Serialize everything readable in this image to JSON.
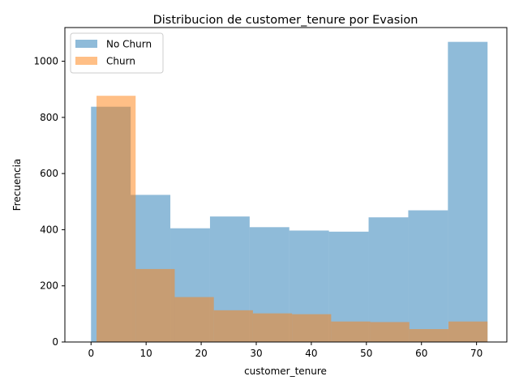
{
  "chart_data": {
    "type": "histogram",
    "title": "Distribucion de customer_tenure por Evasion",
    "xlabel": "customer_tenure",
    "ylabel": "Frecuencia",
    "xlim": [
      -4.75,
      75.5
    ],
    "ylim": [
      0,
      1120
    ],
    "xticks": [
      0,
      10,
      20,
      30,
      40,
      50,
      60,
      70
    ],
    "yticks": [
      0,
      200,
      400,
      600,
      800,
      1000
    ],
    "grid": false,
    "legend_position": "upper left",
    "series": [
      {
        "name": "No Churn",
        "color": "#1f77b4",
        "alpha": 0.5,
        "bin_edges": [
          0,
          7.2,
          14.4,
          21.6,
          28.8,
          36,
          43.2,
          50.4,
          57.6,
          64.8,
          72
        ],
        "values": [
          838,
          524,
          405,
          447,
          409,
          397,
          393,
          444,
          469,
          1069
        ]
      },
      {
        "name": "Churn",
        "color": "#ff7f0e",
        "alpha": 0.5,
        "bin_edges": [
          1,
          8.1,
          15.2,
          22.3,
          29.4,
          36.5,
          43.6,
          50.7,
          57.8,
          64.9,
          72
        ],
        "values": [
          877,
          260,
          160,
          113,
          102,
          99,
          73,
          71,
          46,
          73
        ]
      }
    ]
  }
}
